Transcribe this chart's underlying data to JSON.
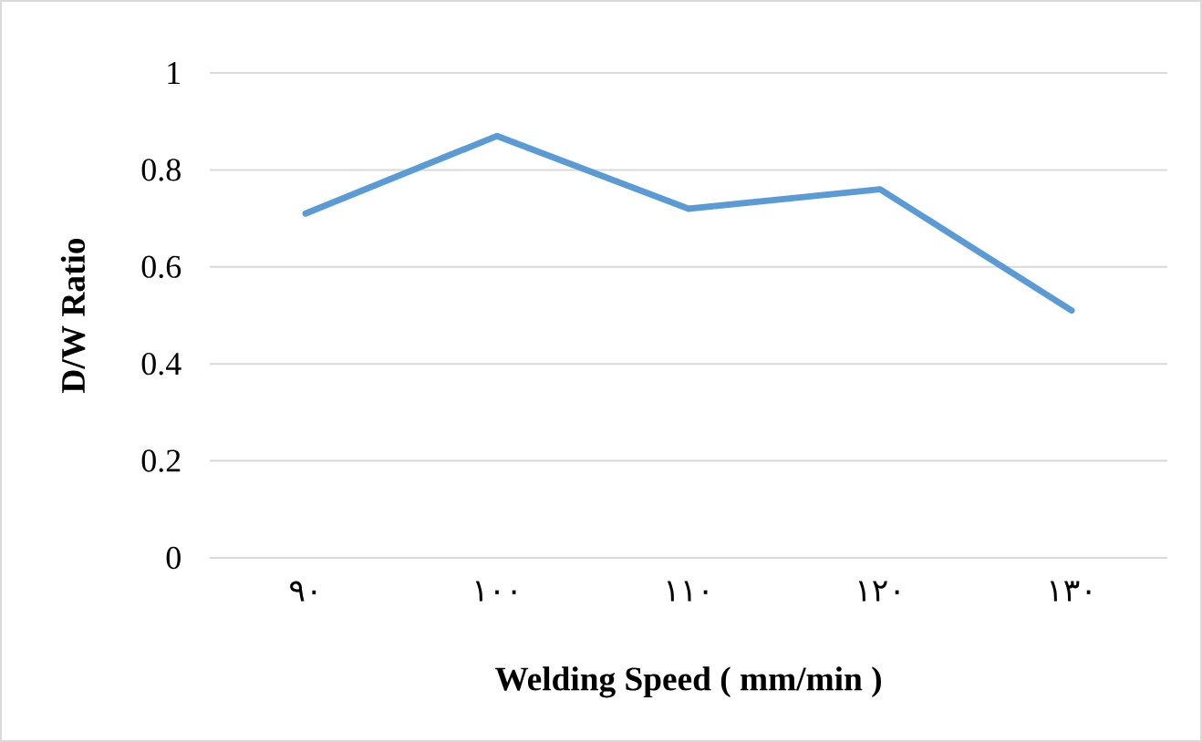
{
  "chart_data": {
    "type": "line",
    "xlabel": "Welding Speed ( mm/min )",
    "ylabel": "D/W Ratio",
    "categories": [
      "٩٠",
      "١٠٠",
      "١١٠",
      "١٢٠",
      "١٣٠"
    ],
    "series": [
      {
        "color": "#5b9bd5",
        "values": [
          0.71,
          0.87,
          0.72,
          0.76,
          0.51
        ]
      }
    ],
    "ylim": [
      0,
      1
    ],
    "yticks": [
      0,
      0.2,
      0.4,
      0.6,
      0.8,
      1
    ],
    "grid": "y",
    "marker": "none",
    "line_style": "solid"
  }
}
